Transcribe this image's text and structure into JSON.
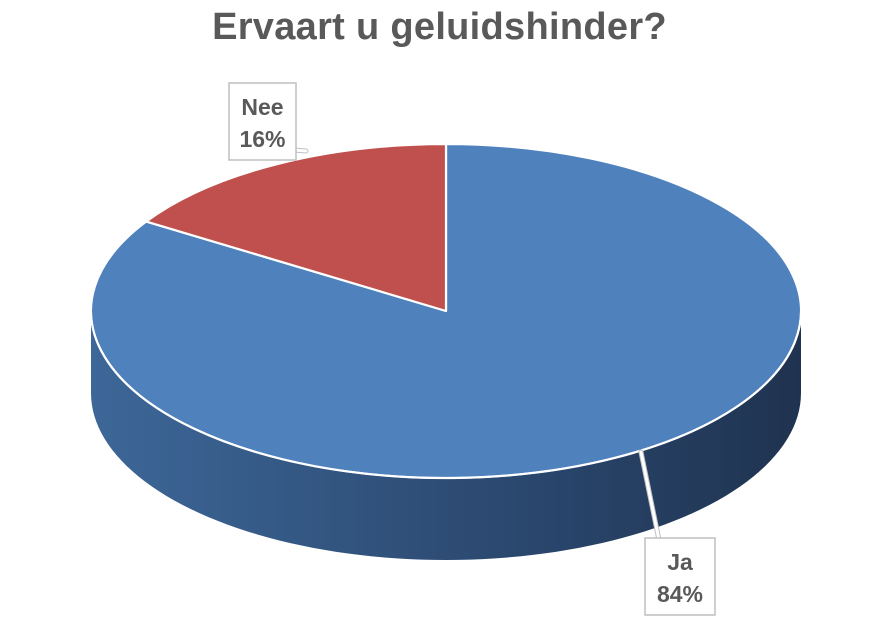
{
  "chart_data": {
    "type": "pie",
    "title": "Ervaart u geluidshinder?",
    "categories": [
      "Ja",
      "Nee"
    ],
    "values": [
      84,
      16
    ],
    "value_format": "percent",
    "data_labels": [
      {
        "category": "Ja",
        "value_text": "84%"
      },
      {
        "category": "Nee",
        "value_text": "16%"
      }
    ],
    "colors": {
      "Ja": "#4f81bd",
      "Nee": "#c0504d",
      "Ja_side_dark": "#1f3350",
      "Ja_side_light": "#3d6798",
      "label_text": "#595959",
      "label_border": "#bfbfbf",
      "title": "#595959"
    },
    "style": "3d",
    "start_angle": "12 o'clock",
    "legend": "none"
  }
}
